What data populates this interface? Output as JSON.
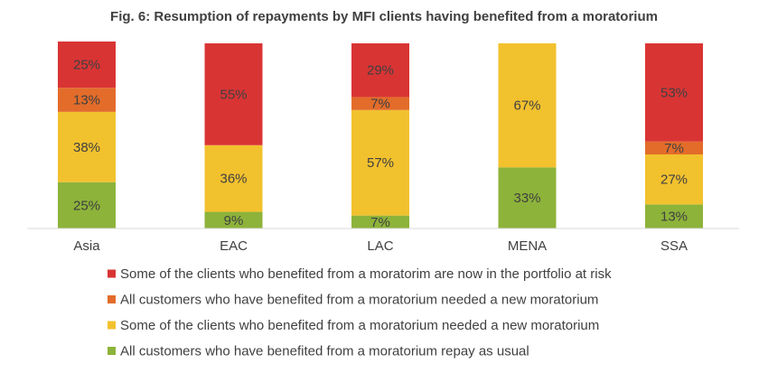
{
  "chart_data": {
    "type": "bar",
    "stacked": true,
    "normalized": true,
    "title": "Fig. 6: Resumption of repayments by MFI clients having benefited from a moratorium",
    "categories": [
      "Asia",
      "EAC",
      "LAC",
      "MENA",
      "SSA"
    ],
    "ylim": [
      0,
      100
    ],
    "grid": false,
    "legend_position": "bottom",
    "series": [
      {
        "name": "All customers who have benefited from a moratorium repay as usual",
        "color": "#8DB33A",
        "values": [
          25,
          9,
          7,
          33,
          13
        ],
        "labels": [
          "25%",
          "9%",
          "7%",
          "33%",
          "13%"
        ]
      },
      {
        "name": "Some of the clients who benefited from a moratorium needed a new moratorium",
        "color": "#F2C12E",
        "values": [
          38,
          36,
          57,
          67,
          27
        ],
        "labels": [
          "38%",
          "36%",
          "57%",
          "67%",
          "27%"
        ]
      },
      {
        "name": "All customers who have benefited from a moratorium needed a new moratorium",
        "color": "#E36C2A",
        "values": [
          13,
          0,
          7,
          0,
          7
        ],
        "labels": [
          "13%",
          "",
          "7%",
          "",
          "7%"
        ]
      },
      {
        "name": "Some of the clients who benefited from a moratorim are now in the portfolio at risk",
        "color": "#D93434",
        "values": [
          25,
          55,
          29,
          0,
          53
        ],
        "labels": [
          "25%",
          "55%",
          "29%",
          "",
          "53%"
        ]
      }
    ],
    "legend_order": [
      3,
      2,
      1,
      0
    ]
  }
}
